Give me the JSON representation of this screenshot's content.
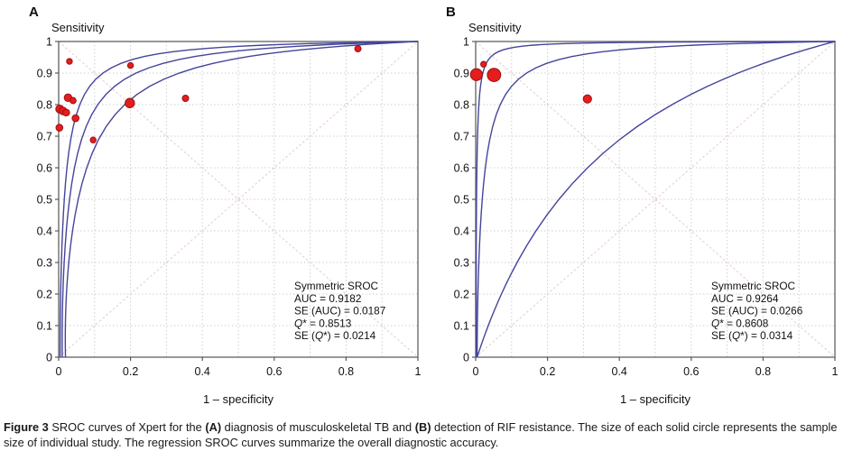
{
  "figure": {
    "caption_segments": [
      {
        "t": "Figure 3 ",
        "b": true
      },
      {
        "t": "SROC curves of Xpert for the ",
        "b": false
      },
      {
        "t": "(A)",
        "b": true
      },
      {
        "t": " diagnosis of musculoskeletal TB and ",
        "b": false
      },
      {
        "t": "(B)",
        "b": true
      },
      {
        "t": " detection of RIF resistance. The size of each solid circle represents the sample size of individual study. The regression SROC curves summarize the overall diagnostic accuracy.",
        "b": false
      }
    ]
  },
  "colors": {
    "curve": "#44449a",
    "point_fill": "#e51d1d",
    "point_stroke": "#9b0e12",
    "grid": "#cfcfcf",
    "diagonal": "#ead2d2",
    "frame": "#777777",
    "text": "#111111"
  },
  "chart_data": [
    {
      "type": "scatter",
      "panel_label": "A",
      "title": "Symmetric SROC",
      "ylabel": "Sensitivity",
      "xlabel": "1 – specificity",
      "xlim": [
        0,
        1
      ],
      "ylim": [
        0,
        1
      ],
      "grid": "dotted, 0.1 spacing, both axes",
      "diagonals": true,
      "x_ticks": [
        0,
        0.2,
        0.4,
        0.6,
        0.8,
        1
      ],
      "x_tick_labels": [
        "0",
        "0.2",
        "0.4",
        "0.6",
        "0.8",
        "1"
      ],
      "y_ticks": [
        0,
        0.1,
        0.2,
        0.3,
        0.4,
        0.5,
        0.6,
        0.7,
        0.8,
        0.9,
        1
      ],
      "y_tick_labels": [
        "0",
        "0.1",
        "0.2",
        "0.3",
        "0.4",
        "0.5",
        "0.6",
        "0.7",
        "0.8",
        "0.9",
        "1"
      ],
      "points": [
        {
          "x": 0.03,
          "sens": 0.937,
          "r": 3.2
        },
        {
          "x": 0.2,
          "sens": 0.924,
          "r": 3.2
        },
        {
          "x": 0.833,
          "sens": 0.977,
          "r": 3.5
        },
        {
          "x": 0.026,
          "sens": 0.822,
          "r": 4.2
        },
        {
          "x": 0.04,
          "sens": 0.813,
          "r": 3.4
        },
        {
          "x": 0.353,
          "sens": 0.82,
          "r": 3.5
        },
        {
          "x": 0.198,
          "sens": 0.805,
          "r": 5.2
        },
        {
          "x": 0.003,
          "sens": 0.786,
          "r": 4.4
        },
        {
          "x": 0.012,
          "sens": 0.78,
          "r": 4.2
        },
        {
          "x": 0.021,
          "sens": 0.775,
          "r": 3.8
        },
        {
          "x": 0.047,
          "sens": 0.757,
          "r": 3.8
        },
        {
          "x": 0.002,
          "sens": 0.727,
          "r": 3.8
        },
        {
          "x": 0.096,
          "sens": 0.688,
          "r": 3.2
        }
      ],
      "sroc_alpha": 3.49,
      "band_alphas": [
        4.16,
        2.88
      ],
      "curve_feet": [
        0.004,
        0.01,
        0.019
      ],
      "stats": {
        "AUC": 0.9182,
        "SE_AUC": 0.0187,
        "Q_star": 0.8513,
        "SE_Q_star": 0.0214
      },
      "stats_lines": [
        [
          {
            "t": "Symmetric SROC"
          }
        ],
        [
          {
            "t": "AUC = 0.9182"
          }
        ],
        [
          {
            "t": "SE (AUC) = 0.0187"
          }
        ],
        [
          {
            "t": "Q",
            "i": true
          },
          {
            "t": "* = 0.8513"
          }
        ],
        [
          {
            "t": "SE ("
          },
          {
            "t": "Q",
            "i": true
          },
          {
            "t": "*) = 0.0214"
          }
        ]
      ]
    },
    {
      "type": "scatter",
      "panel_label": "B",
      "title": "Symmetric SROC",
      "ylabel": "Sensitivity",
      "xlabel": "1 – specificity",
      "xlim": [
        0,
        1
      ],
      "ylim": [
        0,
        1
      ],
      "grid": "dotted, 0.1 spacing, both axes",
      "diagonals": true,
      "x_ticks": [
        0,
        0.2,
        0.4,
        0.6,
        0.8,
        1
      ],
      "x_tick_labels": [
        "0",
        "0.2",
        "0.4",
        "0.6",
        "0.8",
        "1"
      ],
      "y_ticks": [
        0,
        0.1,
        0.2,
        0.3,
        0.4,
        0.5,
        0.6,
        0.7,
        0.8,
        0.9,
        1
      ],
      "y_tick_labels": [
        "0",
        "0.1",
        "0.2",
        "0.3",
        "0.4",
        "0.5",
        "0.6",
        "0.7",
        "0.8",
        "0.9",
        "1"
      ],
      "points": [
        {
          "x": 0.022,
          "sens": 0.928,
          "r": 3.2
        },
        {
          "x": 0.002,
          "sens": 0.895,
          "r": 6.6
        },
        {
          "x": 0.051,
          "sens": 0.894,
          "r": 7.4
        },
        {
          "x": 0.311,
          "sens": 0.818,
          "r": 4.6
        }
      ],
      "sroc_alpha": 4.0,
      "band_alphas": [
        6.1,
        1.2
      ],
      "curve_feet": [
        0.002,
        0.004,
        0.004
      ],
      "stats": {
        "AUC": 0.9264,
        "SE_AUC": 0.0266,
        "Q_star": 0.8608,
        "SE_Q_star": 0.0314
      },
      "stats_lines": [
        [
          {
            "t": "Symmetric SROC"
          }
        ],
        [
          {
            "t": "AUC = 0.9264"
          }
        ],
        [
          {
            "t": "SE (AUC) = 0.0266"
          }
        ],
        [
          {
            "t": "Q",
            "i": true
          },
          {
            "t": "* = 0.8608"
          }
        ],
        [
          {
            "t": "SE ("
          },
          {
            "t": "Q",
            "i": true
          },
          {
            "t": "*) = 0.0314"
          }
        ]
      ]
    }
  ]
}
